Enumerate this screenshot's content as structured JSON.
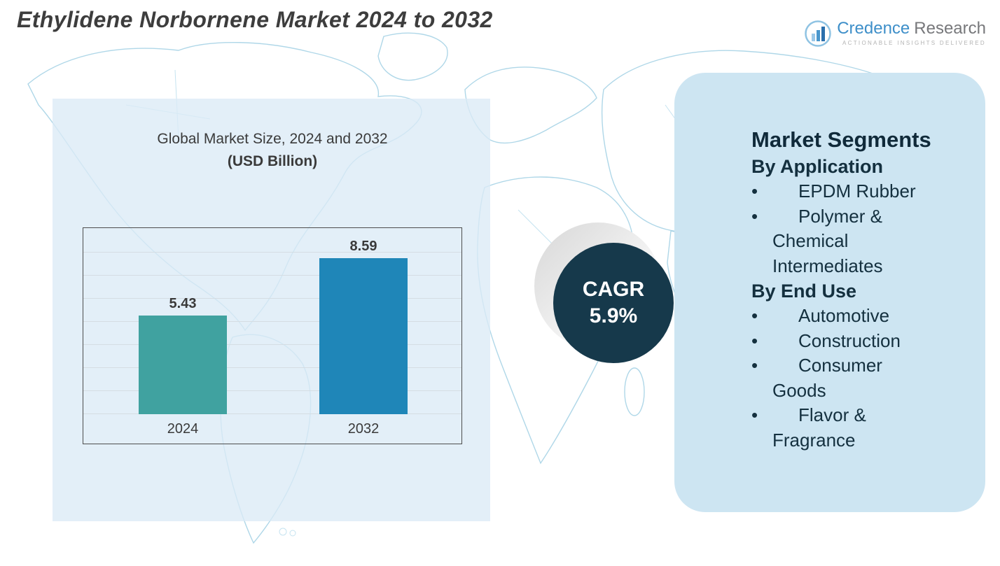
{
  "header": {
    "title": "Ethylidene Norbornene Market 2024 to 2032"
  },
  "logo": {
    "brand_primary": "Credence",
    "brand_secondary": "Research",
    "tagline": "Actionable Insights Delivered"
  },
  "chart_data": {
    "type": "bar",
    "title": "Global Market Size, 2024 and 2032",
    "subtitle": "(USD Billion)",
    "categories": [
      "2024",
      "2032"
    ],
    "values": [
      5.43,
      8.59
    ],
    "bar_colors": [
      "#40a2a0",
      "#1f86b8"
    ],
    "ylim": [
      0,
      10
    ],
    "grid": true,
    "legend": false,
    "xlabel": "",
    "ylabel": ""
  },
  "cagr_badge": {
    "label": "CAGR",
    "value": "5.9%"
  },
  "segments_panel": {
    "title": "Market Segments",
    "groups": [
      {
        "heading": "By Application",
        "items": [
          "EPDM Rubber",
          "Polymer & Chemical Intermediates"
        ]
      },
      {
        "heading": "By End Use",
        "items": [
          "Automotive",
          "Construction",
          "Consumer Goods",
          "Flavor & Fragrance"
        ]
      }
    ]
  },
  "colors": {
    "bar_2024": "#40a2a0",
    "bar_2032": "#1f86b8",
    "cagr_circle_bg": "#16394b",
    "segments_panel_bg": "#cde5f2",
    "left_panel_bg": "#dbebf6",
    "map_stroke": "#a6d3e6"
  }
}
